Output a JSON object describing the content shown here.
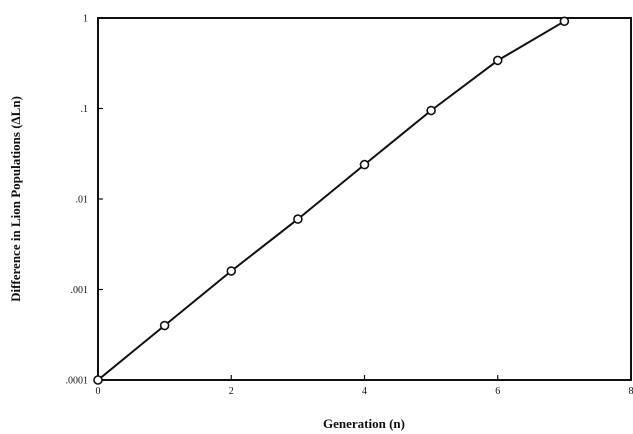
{
  "chart_data": {
    "type": "line",
    "title": "",
    "xlabel": "Generation (n)",
    "ylabel": "Difference in Lion Populations (ΔLn)",
    "xlim": [
      0,
      8
    ],
    "ylim": [
      0.0001,
      1
    ],
    "yscale": "log",
    "grid": false,
    "x_ticks": [
      {
        "value": 0,
        "label": "0"
      },
      {
        "value": 2,
        "label": "2"
      },
      {
        "value": 4,
        "label": "4"
      },
      {
        "value": 6,
        "label": "6"
      },
      {
        "value": 8,
        "label": "8"
      }
    ],
    "y_ticks": [
      {
        "value": 0.0001,
        "label": ".0001"
      },
      {
        "value": 0.001,
        "label": ".001"
      },
      {
        "value": 0.01,
        "label": ".01"
      },
      {
        "value": 0.1,
        "label": ".1"
      },
      {
        "value": 1,
        "label": "1"
      }
    ],
    "series": [
      {
        "x": [
          0,
          1,
          2,
          3,
          4,
          5,
          6,
          7
        ],
        "y": [
          0.0001,
          0.0004,
          0.0016,
          0.006,
          0.024,
          0.095,
          0.34,
          0.92
        ],
        "marker": "open-circle",
        "color": "#111111"
      }
    ]
  }
}
